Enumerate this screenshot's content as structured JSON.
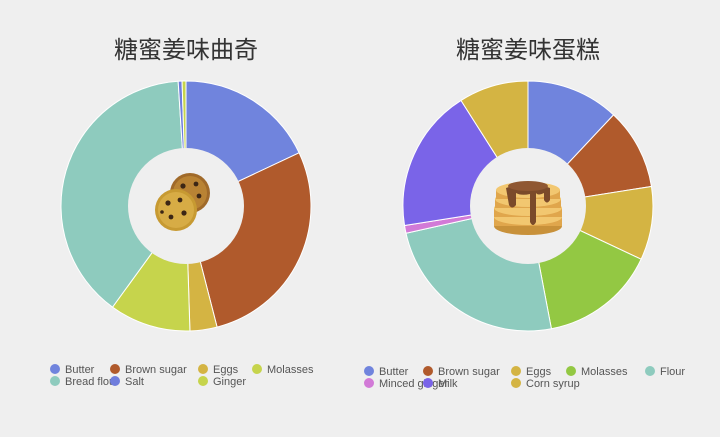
{
  "chart_data": [
    {
      "type": "pie",
      "title": "糖蜜姜味曲奇",
      "center_icon": "cookie-icon",
      "categories": [
        "Butter",
        "Brown sugar",
        "Eggs",
        "Molasses",
        "Bread flour",
        "Salt",
        "Ginger"
      ],
      "values": [
        18.0,
        28.0,
        3.5,
        10.5,
        39.0,
        0.5,
        0.5
      ],
      "colors": [
        "#7084dd",
        "#b05a2c",
        "#d4b443",
        "#c6d44c",
        "#8ecbbe",
        "#6f7ddc",
        "#c6d44c"
      ]
    },
    {
      "type": "pie",
      "title": "糖蜜姜味蛋糕",
      "center_icon": "pancake-stack-icon",
      "categories": [
        "Butter",
        "Brown sugar",
        "Eggs",
        "Molasses",
        "Flour",
        "Minced ginger",
        "Milk",
        "Corn syrup"
      ],
      "values": [
        12.0,
        10.5,
        9.5,
        15.0,
        24.5,
        1.0,
        18.5,
        9.0
      ],
      "colors": [
        "#7084dd",
        "#b05a2c",
        "#d4b443",
        "#93c843",
        "#8ecbbe",
        "#d27ad7",
        "#7a64e8",
        "#d4b443"
      ]
    }
  ]
}
